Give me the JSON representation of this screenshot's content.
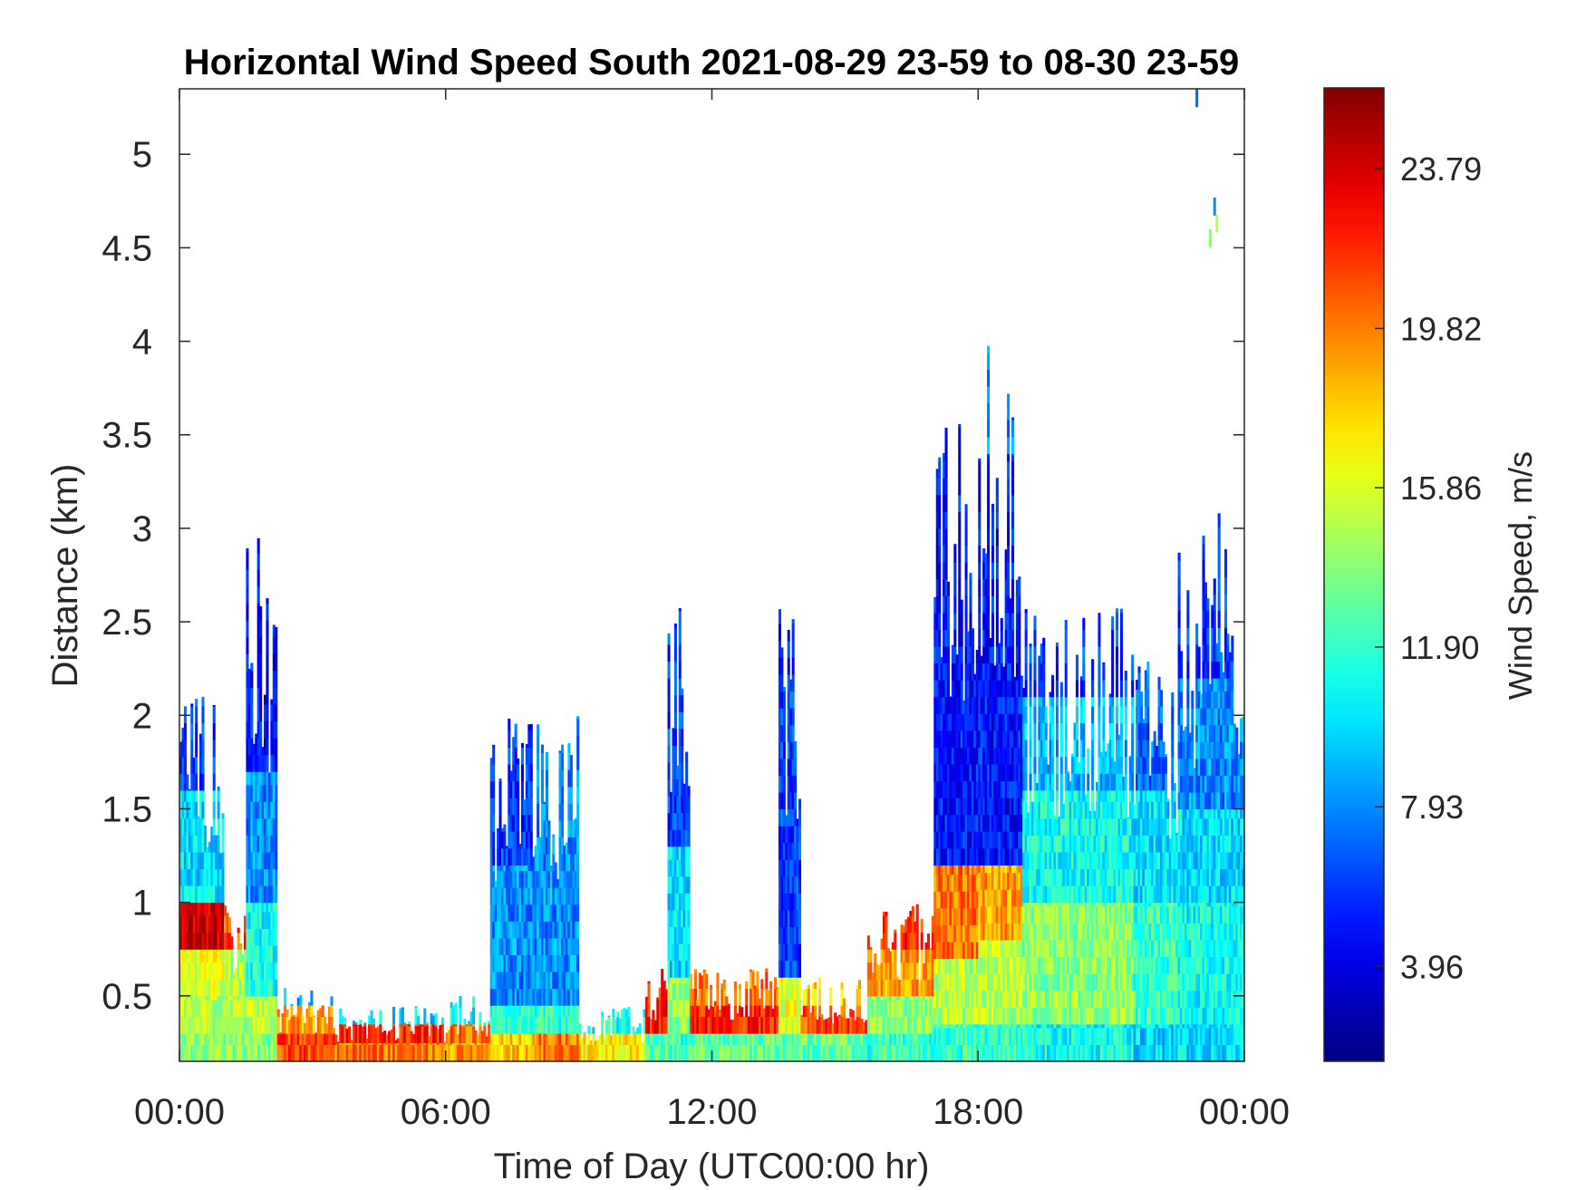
{
  "chart_data": {
    "type": "heatmap",
    "title": "Horizontal Wind Speed South 2021-08-29 23-59 to 08-30 23-59",
    "xlabel": "Time of Day (UTC00:00 hr)",
    "ylabel": "Distance (km)",
    "colorbar_label": "Wind Speed, m/s",
    "x_ticks": [
      "00:00",
      "06:00",
      "12:00",
      "18:00",
      "00:00"
    ],
    "x_range_hours": [
      0,
      24
    ],
    "y_ticks": [
      "0.5",
      "1",
      "1.5",
      "2",
      "2.5",
      "3",
      "3.5",
      "4",
      "4.5",
      "5"
    ],
    "y_range_km": [
      0.15,
      5.35
    ],
    "colorbar_ticks": [
      "3.96",
      "7.93",
      "11.90",
      "15.86",
      "19.82",
      "23.79"
    ],
    "colorbar_range": [
      1.6,
      25.8
    ],
    "colormap": "jet",
    "colormap_stops": [
      "#00007f",
      "#0000ff",
      "#00ffff",
      "#ffff00",
      "#ff0000",
      "#7f0000"
    ],
    "grid": false,
    "segments": [
      {
        "t": [
          0.0,
          1.0
        ],
        "top_km": 2.2,
        "v": [
          [
            0.15,
            0.3,
            14
          ],
          [
            0.3,
            0.5,
            15
          ],
          [
            0.5,
            0.75,
            16
          ],
          [
            0.75,
            1.0,
            24
          ],
          [
            1.0,
            1.6,
            10
          ],
          [
            1.6,
            2.2,
            6
          ]
        ]
      },
      {
        "t": [
          1.0,
          1.5
        ],
        "top_km": 1.0,
        "v": [
          [
            0.15,
            0.3,
            14
          ],
          [
            0.3,
            0.5,
            15
          ],
          [
            0.5,
            0.75,
            15
          ],
          [
            0.75,
            1.0,
            21
          ]
        ]
      },
      {
        "t": [
          1.5,
          2.2
        ],
        "top_km": 3.05,
        "v": [
          [
            0.15,
            0.3,
            14
          ],
          [
            0.3,
            0.5,
            15
          ],
          [
            0.5,
            1.0,
            11
          ],
          [
            1.0,
            1.7,
            8
          ],
          [
            1.7,
            3.05,
            5
          ]
        ]
      },
      {
        "t": [
          2.2,
          3.5
        ],
        "top_km": 0.55,
        "v": [
          [
            0.15,
            0.3,
            21
          ],
          [
            0.3,
            0.45,
            19
          ],
          [
            0.45,
            0.55,
            9
          ]
        ]
      },
      {
        "t": [
          3.5,
          6.0
        ],
        "top_km": 0.45,
        "v": [
          [
            0.15,
            0.25,
            20
          ],
          [
            0.25,
            0.35,
            22
          ],
          [
            0.35,
            0.45,
            10
          ]
        ]
      },
      {
        "t": [
          6.0,
          7.0
        ],
        "top_km": 0.5,
        "v": [
          [
            0.15,
            0.25,
            19
          ],
          [
            0.25,
            0.35,
            20
          ],
          [
            0.35,
            0.5,
            10
          ]
        ]
      },
      {
        "t": [
          7.0,
          8.0
        ],
        "top_km": 2.0,
        "v": [
          [
            0.15,
            0.3,
            18
          ],
          [
            0.3,
            0.45,
            12
          ],
          [
            0.45,
            1.2,
            8
          ],
          [
            1.2,
            2.0,
            6
          ]
        ]
      },
      {
        "t": [
          8.0,
          9.0
        ],
        "top_km": 2.0,
        "v": [
          [
            0.15,
            0.3,
            20
          ],
          [
            0.3,
            0.45,
            12
          ],
          [
            0.45,
            2.0,
            8
          ]
        ]
      },
      {
        "t": [
          9.0,
          10.5
        ],
        "top_km": 0.45,
        "v": [
          [
            0.15,
            0.3,
            17
          ],
          [
            0.3,
            0.45,
            11
          ]
        ]
      },
      {
        "t": [
          10.5,
          11.0
        ],
        "top_km": 0.65,
        "v": [
          [
            0.15,
            0.3,
            13
          ],
          [
            0.3,
            0.65,
            22
          ]
        ]
      },
      {
        "t": [
          11.0,
          11.5
        ],
        "top_km": 2.6,
        "v": [
          [
            0.15,
            0.3,
            12
          ],
          [
            0.3,
            0.6,
            14
          ],
          [
            0.6,
            1.3,
            10
          ],
          [
            1.3,
            2.6,
            6
          ]
        ]
      },
      {
        "t": [
          11.5,
          13.5
        ],
        "top_km": 0.65,
        "v": [
          [
            0.15,
            0.3,
            13
          ],
          [
            0.3,
            0.45,
            22
          ],
          [
            0.45,
            0.65,
            20
          ]
        ]
      },
      {
        "t": [
          13.5,
          14.0
        ],
        "top_km": 2.6,
        "v": [
          [
            0.15,
            0.3,
            13
          ],
          [
            0.3,
            0.6,
            16
          ],
          [
            0.6,
            2.6,
            6
          ]
        ]
      },
      {
        "t": [
          14.0,
          15.5
        ],
        "top_km": 0.6,
        "v": [
          [
            0.15,
            0.3,
            13
          ],
          [
            0.3,
            0.45,
            21
          ],
          [
            0.45,
            0.6,
            18
          ]
        ]
      },
      {
        "t": [
          15.5,
          17.0
        ],
        "top_km": 1.0,
        "v": [
          [
            0.15,
            0.3,
            12
          ],
          [
            0.3,
            0.5,
            14
          ],
          [
            0.5,
            0.75,
            19
          ],
          [
            0.75,
            1.0,
            22
          ]
        ]
      },
      {
        "t": [
          17.0,
          18.0
        ],
        "top_km": 3.6,
        "v": [
          [
            0.15,
            0.35,
            12
          ],
          [
            0.35,
            0.7,
            15
          ],
          [
            0.7,
            1.2,
            20
          ],
          [
            1.2,
            3.6,
            5
          ]
        ]
      },
      {
        "t": [
          18.0,
          19.0
        ],
        "top_km": 4.0,
        "v": [
          [
            0.15,
            0.35,
            12
          ],
          [
            0.35,
            0.8,
            15
          ],
          [
            0.8,
            1.2,
            19
          ],
          [
            1.2,
            3.4,
            5
          ],
          [
            3.4,
            4.0,
            8
          ]
        ]
      },
      {
        "t": [
          19.0,
          21.5
        ],
        "top_km": 2.6,
        "v": [
          [
            0.15,
            0.35,
            11
          ],
          [
            0.35,
            1.0,
            14
          ],
          [
            1.0,
            1.6,
            11
          ],
          [
            1.6,
            2.1,
            9
          ],
          [
            2.1,
            2.6,
            6
          ]
        ]
      },
      {
        "t": [
          21.5,
          22.5
        ],
        "top_km": 2.3,
        "v": [
          [
            0.15,
            0.35,
            10
          ],
          [
            0.35,
            1.0,
            12
          ],
          [
            1.0,
            1.6,
            10
          ],
          [
            1.6,
            2.3,
            7
          ]
        ]
      },
      {
        "t": [
          22.5,
          24.0
        ],
        "top_km": 3.1,
        "v": [
          [
            0.15,
            0.35,
            10
          ],
          [
            0.35,
            1.0,
            11
          ],
          [
            1.0,
            1.5,
            10
          ],
          [
            1.5,
            2.2,
            8
          ],
          [
            2.2,
            3.1,
            6
          ]
        ]
      }
    ],
    "isolated_points": [
      {
        "t": 22.9,
        "km": 5.3,
        "v": 7
      },
      {
        "t": 23.3,
        "km": 4.72,
        "v": 8
      },
      {
        "t": 23.35,
        "km": 4.63,
        "v": 15
      },
      {
        "t": 23.2,
        "km": 4.55,
        "v": 14
      }
    ]
  }
}
